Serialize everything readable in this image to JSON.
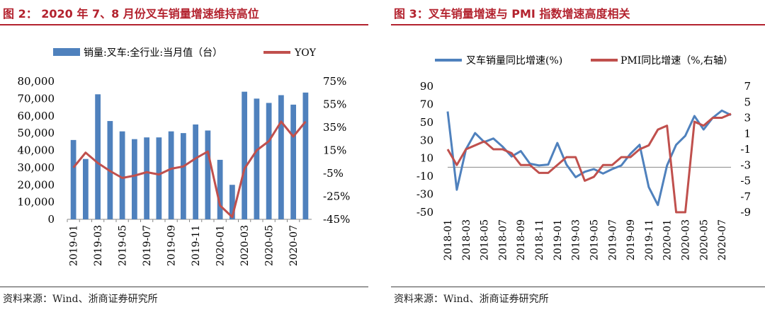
{
  "left": {
    "title": "图 2： 2020 年 7、8 月份叉车销量增速维持高位",
    "source": "资料来源：Wind、浙商证券研究所",
    "chart_data": {
      "type": "bar",
      "categories": [
        "2019-01",
        "2019-02",
        "2019-03",
        "2019-04",
        "2019-05",
        "2019-06",
        "2019-07",
        "2019-08",
        "2019-09",
        "2019-10",
        "2019-11",
        "2019-12",
        "2020-01",
        "2020-02",
        "2020-03",
        "2020-04",
        "2020-05",
        "2020-06",
        "2020-07",
        "2020-08"
      ],
      "x_tick_labels": [
        "2019-01",
        "2019-03",
        "2019-05",
        "2019-07",
        "2019-09",
        "2019-11",
        "2020-01",
        "2020-03",
        "2020-05",
        "2020-07"
      ],
      "series": [
        {
          "name": "销量:叉车:全行业:当月值（台）",
          "type": "bar",
          "axis": "left",
          "color": "#4f81bd",
          "values": [
            46000,
            35000,
            72500,
            57000,
            51000,
            46500,
            47500,
            47500,
            51000,
            50000,
            55000,
            51500,
            34500,
            20000,
            74000,
            70000,
            67500,
            72000,
            66500,
            73500
          ]
        },
        {
          "name": "YOY",
          "type": "line",
          "axis": "right",
          "color": "#c0504d",
          "values": [
            0,
            13,
            4,
            -3,
            -9,
            -7,
            -4,
            -6,
            -1,
            1,
            8,
            14,
            -33,
            -43,
            -1,
            15,
            23,
            40,
            27,
            40
          ]
        }
      ],
      "ylim_left": [
        0,
        80000
      ],
      "yticks_left": [
        "0",
        "10,000",
        "20,000",
        "30,000",
        "40,000",
        "50,000",
        "60,000",
        "70,000",
        "80,000"
      ],
      "ylim_right": [
        -45,
        75
      ],
      "yticks_right": [
        "75%",
        "55%",
        "35%",
        "15%",
        "-5%",
        "-25%",
        "-45%"
      ],
      "legend_position": "top"
    }
  },
  "right": {
    "title": "图 3：叉车销量增速与 PMI 指数增速高度相关",
    "source": "资料来源：Wind、浙商证券研究所",
    "chart_data": {
      "type": "line",
      "x": [
        "2018-01",
        "2018-02",
        "2018-03",
        "2018-04",
        "2018-05",
        "2018-06",
        "2018-07",
        "2018-08",
        "2018-09",
        "2018-10",
        "2018-11",
        "2018-12",
        "2019-01",
        "2019-02",
        "2019-03",
        "2019-04",
        "2019-05",
        "2019-06",
        "2019-07",
        "2019-08",
        "2019-09",
        "2019-10",
        "2019-11",
        "2019-12",
        "2020-01",
        "2020-02",
        "2020-03",
        "2020-04",
        "2020-05",
        "2020-06",
        "2020-07",
        "2020-08"
      ],
      "x_tick_labels": [
        "2018-01",
        "2018-03",
        "2018-05",
        "2018-07",
        "2018-09",
        "2018-11",
        "2019-01",
        "2019-03",
        "2019-05",
        "2019-07",
        "2019-09",
        "2019-11",
        "2020-01",
        "2020-03",
        "2020-05",
        "2020-07"
      ],
      "series": [
        {
          "name": "叉车销量同比增速(%)",
          "axis": "left",
          "color": "#4f81bd",
          "values": [
            62,
            -25,
            20,
            38,
            28,
            32,
            23,
            12,
            18,
            4,
            2,
            3,
            27,
            3,
            -11,
            -5,
            -2,
            -7,
            -2,
            2,
            15,
            25,
            -22,
            -42,
            2,
            25,
            35,
            57,
            42,
            55,
            63,
            58
          ]
        },
        {
          "name": "PMI同比增速（%,右轴）",
          "axis": "right",
          "color": "#c0504d",
          "values": [
            -1,
            -3,
            -1,
            -0.5,
            0,
            -1,
            -1,
            -1.5,
            -3,
            -3,
            -4,
            -4,
            -3,
            -2,
            -2,
            -5,
            -4.5,
            -3,
            -3,
            -2,
            -2,
            -1,
            -0.5,
            1.5,
            2,
            -9,
            -9,
            2.5,
            2,
            3,
            3,
            3.5
          ]
        }
      ],
      "ylim_left": [
        -50,
        90
      ],
      "yticks_left": [
        "90",
        "70",
        "50",
        "30",
        "10",
        "-10",
        "-30",
        "-50"
      ],
      "ylim_right": [
        -9,
        7
      ],
      "yticks_right": [
        "7",
        "5",
        "3",
        "1",
        "-1",
        "-3",
        "-5",
        "-7",
        "-9"
      ],
      "legend_position": "top"
    }
  }
}
